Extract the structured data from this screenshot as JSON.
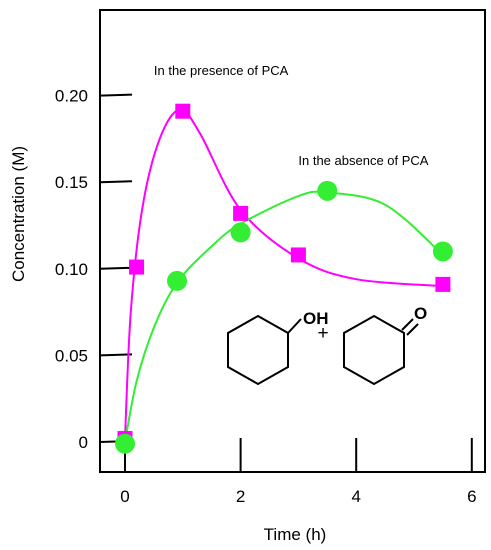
{
  "chart_data": {
    "type": "scatter",
    "xlabel": "Time (h)",
    "ylabel": "Concentration (M)",
    "xlim": [
      -0.4,
      6.4
    ],
    "ylim": [
      -0.018,
      0.255
    ],
    "x_ticks": [
      "0",
      "2",
      "4",
      "6"
    ],
    "y_ticks": [
      "0",
      "0.05",
      "0.10",
      "0.15",
      "0.20"
    ],
    "grid": false,
    "series": [
      {
        "name": "In the presence of PCA",
        "color": "#ff00ff",
        "marker": "square",
        "x": [
          0.0,
          0.2,
          1.0,
          2.0,
          3.0,
          5.5
        ],
        "y": [
          0.002,
          0.101,
          0.191,
          0.132,
          0.108,
          0.091
        ],
        "fit_curve": [
          [
            0.0,
            0.002
          ],
          [
            0.1,
            0.075
          ],
          [
            0.3,
            0.135
          ],
          [
            0.6,
            0.175
          ],
          [
            0.95,
            0.192
          ],
          [
            1.3,
            0.178
          ],
          [
            2.0,
            0.134
          ],
          [
            3.0,
            0.106
          ],
          [
            4.0,
            0.094
          ],
          [
            5.5,
            0.09
          ]
        ]
      },
      {
        "name": "In the absence of PCA",
        "color": "#33ee33",
        "marker": "circle",
        "x": [
          0.0,
          0.9,
          2.0,
          3.5,
          5.5
        ],
        "y": [
          -0.001,
          0.093,
          0.121,
          0.145,
          0.11
        ],
        "fit_curve": [
          [
            0.0,
            0.0
          ],
          [
            0.2,
            0.035
          ],
          [
            0.5,
            0.066
          ],
          [
            0.9,
            0.092
          ],
          [
            1.5,
            0.113
          ],
          [
            2.0,
            0.126
          ],
          [
            3.0,
            0.142
          ],
          [
            3.5,
            0.144
          ],
          [
            4.5,
            0.137
          ],
          [
            5.5,
            0.108
          ]
        ]
      }
    ],
    "annotations": [
      {
        "text": "In the presence of PCA",
        "x": 0.5,
        "y": 0.212
      },
      {
        "text": "In the absence of PCA",
        "x": 3.0,
        "y": 0.16
      }
    ]
  },
  "inset": {
    "oh_label": "OH",
    "plus_label": "+",
    "o_label": "O",
    "oh_color": "#ee0000",
    "o_color": "#1133cc"
  }
}
